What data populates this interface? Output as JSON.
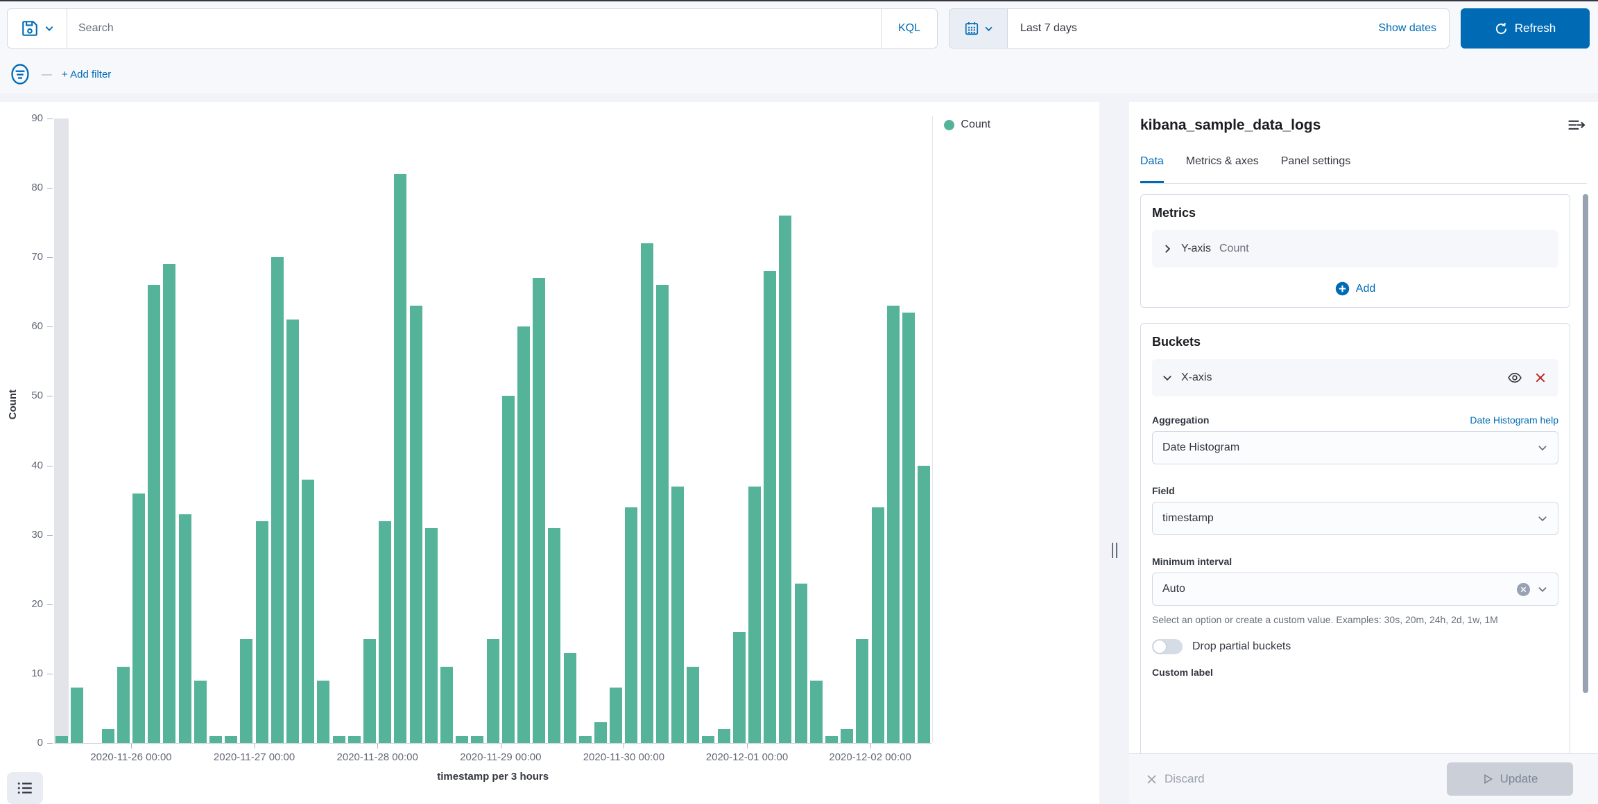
{
  "colors": {
    "accent": "#006BB4",
    "bar": "#54B399",
    "danger": "#BD271E",
    "partial_bucket": "#e3e4e9"
  },
  "topbar": {
    "search_placeholder": "Search",
    "kql": "KQL",
    "time_range": "Last 7 days",
    "show_dates": "Show dates",
    "refresh": "Refresh",
    "filter_dash": "—",
    "add_filter": "+ Add filter"
  },
  "chart_data": {
    "type": "bar",
    "title": "",
    "ylabel": "Count",
    "xlabel": "timestamp per 3 hours",
    "ylim": [
      0,
      90
    ],
    "y_tick_step": 10,
    "grid": false,
    "legend_position": "right",
    "legend": [
      {
        "label": "Count",
        "color": "#54B399"
      }
    ],
    "bucket_interval_hours": 3,
    "start": "2020-11-25 09:00",
    "first_bucket_partial": true,
    "values": [
      1,
      8,
      0,
      2,
      11,
      36,
      66,
      69,
      33,
      9,
      1,
      1,
      15,
      32,
      70,
      61,
      38,
      9,
      1,
      1,
      15,
      32,
      82,
      63,
      31,
      11,
      1,
      1,
      15,
      50,
      60,
      67,
      31,
      13,
      1,
      3,
      8,
      34,
      72,
      66,
      37,
      11,
      1,
      2,
      16,
      37,
      68,
      76,
      23,
      9,
      1,
      2,
      15,
      34,
      63,
      62,
      40
    ],
    "x_tick_labels": [
      "2020-11-26 00:00",
      "2020-11-27 00:00",
      "2020-11-28 00:00",
      "2020-11-29 00:00",
      "2020-11-30 00:00",
      "2020-12-01 00:00",
      "2020-12-02 00:00"
    ],
    "x_tick_bar_index": [
      5,
      13,
      21,
      29,
      37,
      45,
      53
    ]
  },
  "panel": {
    "title": "kibana_sample_data_logs",
    "tabs": [
      {
        "label": "Data",
        "active": true
      },
      {
        "label": "Metrics & axes",
        "active": false
      },
      {
        "label": "Panel settings",
        "active": false
      }
    ],
    "metrics": {
      "heading": "Metrics",
      "row_label": "Y-axis",
      "row_value": "Count",
      "add": "Add"
    },
    "buckets": {
      "heading": "Buckets",
      "row_label": "X-axis",
      "aggregation_label": "Aggregation",
      "aggregation_help": "Date Histogram help",
      "aggregation_value": "Date Histogram",
      "field_label": "Field",
      "field_value": "timestamp",
      "min_interval_label": "Minimum interval",
      "min_interval_value": "Auto",
      "helper_text": "Select an option or create a custom value. Examples: 30s, 20m, 24h, 2d, 1w, 1M",
      "drop_partial_label": "Drop partial buckets",
      "custom_label": "Custom label"
    },
    "footer": {
      "discard": "Discard",
      "update": "Update"
    }
  }
}
